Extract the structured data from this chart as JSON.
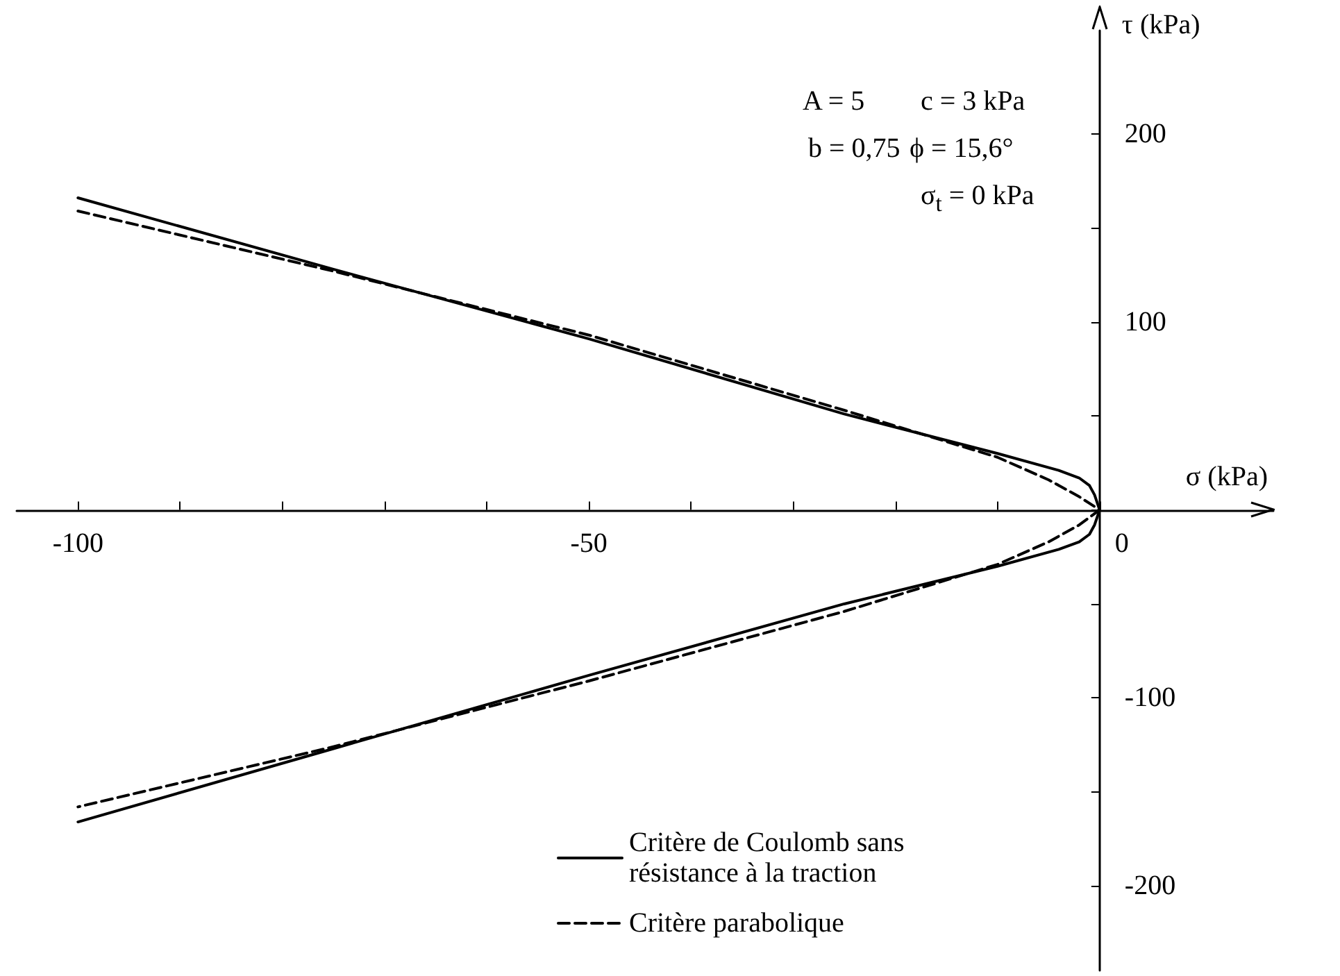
{
  "chart_data": {
    "type": "line",
    "xlabel": "σ (kPa)",
    "ylabel": "τ (kPa)",
    "xlim": [
      -106,
      17
    ],
    "ylim": [
      -245,
      255
    ],
    "xticks": [
      -100,
      {
        "value": -90,
        "label": null
      },
      {
        "value": -80,
        "label": null
      },
      {
        "value": -70,
        "label": null
      },
      {
        "value": -60,
        "label": null
      },
      -50,
      {
        "value": -40,
        "label": null
      },
      {
        "value": -30,
        "label": null
      },
      {
        "value": -20,
        "label": null
      },
      {
        "value": -10,
        "label": null
      },
      0
    ],
    "yticks": [
      -200,
      {
        "value": -150,
        "label": null
      },
      -100,
      {
        "value": -50,
        "label": null
      },
      {
        "value": 0,
        "label": null
      },
      {
        "value": 50,
        "label": null
      },
      100,
      {
        "value": 150,
        "label": null
      },
      200
    ],
    "marker": "none",
    "legend": "bottom right",
    "series": [
      {
        "name": "Critère de Coulomb sans résistance à la traction",
        "color": "#000000",
        "line_style": "solid",
        "x": [
          -100,
          -75,
          -50,
          -25,
          -10,
          -4,
          -2,
          -1,
          -0.5,
          0,
          -0.5,
          -1,
          -2,
          -4,
          -10,
          -25,
          -50,
          -75,
          -100
        ],
        "values": [
          166,
          128,
          91,
          51,
          30,
          21,
          17,
          13,
          8,
          0,
          -8,
          -13,
          -17,
          -21,
          -30,
          -50,
          -88,
          -127,
          -166
        ]
      },
      {
        "name": "Critère parabolique",
        "color": "#000000",
        "line_style": "dashed",
        "x": [
          -100,
          -75,
          -50,
          -25,
          -10,
          -5,
          -2,
          0,
          -2,
          -5,
          -10,
          -25,
          -50,
          -75,
          -100
        ],
        "values": [
          159,
          127,
          93,
          53,
          28,
          16,
          7,
          0,
          -8,
          -17,
          -29,
          -54,
          -91,
          -126,
          -158
        ]
      }
    ],
    "annotations": [
      "A = 5",
      "b = 0,75",
      "c = 3 kPa",
      "ϕ = 15,6°",
      "σ$_{t}$ = 0 kPa"
    ]
  }
}
